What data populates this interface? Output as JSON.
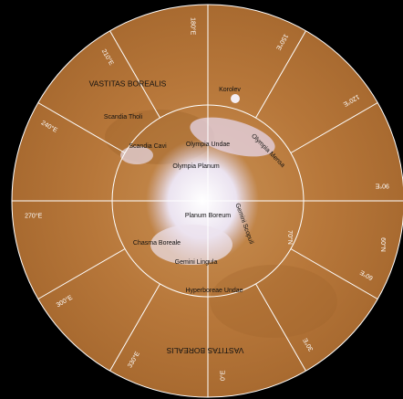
{
  "longitudes": [
    "180°E",
    "150°E",
    "120°E",
    "90°E",
    "60°E",
    "30°E",
    "0°E",
    "330°E",
    "300°E",
    "270°E",
    "240°E",
    "210°E"
  ],
  "latitudes": [
    "70°N",
    "60°N"
  ],
  "features": [
    "VASTITAS BOREALIS",
    "Korolev",
    "Scandia Tholi",
    "Scandia Cavi",
    "Olympia Undae",
    "Olympia Mensa",
    "Olympia Planum",
    "Planum Boreum",
    "Gemini Scopuli",
    "Chasma Boreale",
    "Gemini Lingula",
    "Hyperboreae Undae",
    "VASTITAS BOREALIS"
  ]
}
